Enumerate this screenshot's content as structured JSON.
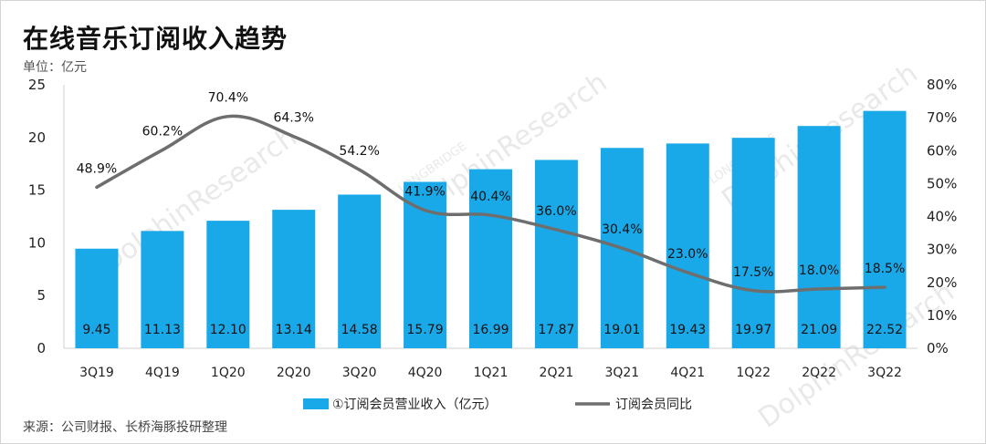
{
  "title": "在线音乐订阅收入趋势",
  "unit_label": "单位：亿元",
  "source_label": "来源：公司财报、长桥海豚投研整理",
  "watermark_brand": "LONGBRIDGE",
  "watermark_text": "DolphinResearch",
  "chart_data": {
    "type": "bar",
    "categories": [
      "3Q19",
      "4Q19",
      "1Q20",
      "2Q20",
      "3Q20",
      "4Q20",
      "1Q21",
      "2Q21",
      "3Q21",
      "4Q21",
      "1Q22",
      "2Q22",
      "3Q22"
    ],
    "series": [
      {
        "name": "①订阅会员营业收入（亿元）",
        "type": "bar",
        "axis": "left",
        "values": [
          9.45,
          11.13,
          12.1,
          13.14,
          14.58,
          15.79,
          16.99,
          17.87,
          19.01,
          19.43,
          19.97,
          21.09,
          22.52
        ],
        "labels": [
          "9.45",
          "11.13",
          "12.10",
          "13.14",
          "14.58",
          "15.79",
          "16.99",
          "17.87",
          "19.01",
          "19.43",
          "19.97",
          "21.09",
          "22.52"
        ],
        "color": "#1aa9e8"
      },
      {
        "name": "订阅会员同比",
        "type": "line",
        "axis": "right",
        "values": [
          48.9,
          60.2,
          70.4,
          64.3,
          54.2,
          41.9,
          40.4,
          36.0,
          30.4,
          23.0,
          17.5,
          18.0,
          18.5
        ],
        "labels": [
          "48.9%",
          "60.2%",
          "70.4%",
          "64.3%",
          "54.2%",
          "41.9%",
          "40.4%",
          "36.0%",
          "30.4%",
          "23.0%",
          "17.5%",
          "18.0%",
          "18.5%"
        ],
        "color": "#6e6e6e"
      }
    ],
    "left_axis": {
      "ylim": [
        0,
        25
      ],
      "ticks": [
        "0",
        "5",
        "10",
        "15",
        "20",
        "25"
      ]
    },
    "right_axis": {
      "ylim": [
        0,
        80
      ],
      "ticks": [
        "0%",
        "10%",
        "20%",
        "30%",
        "40%",
        "50%",
        "60%",
        "70%",
        "80%"
      ]
    },
    "grid": false,
    "legend_position": "bottom"
  }
}
